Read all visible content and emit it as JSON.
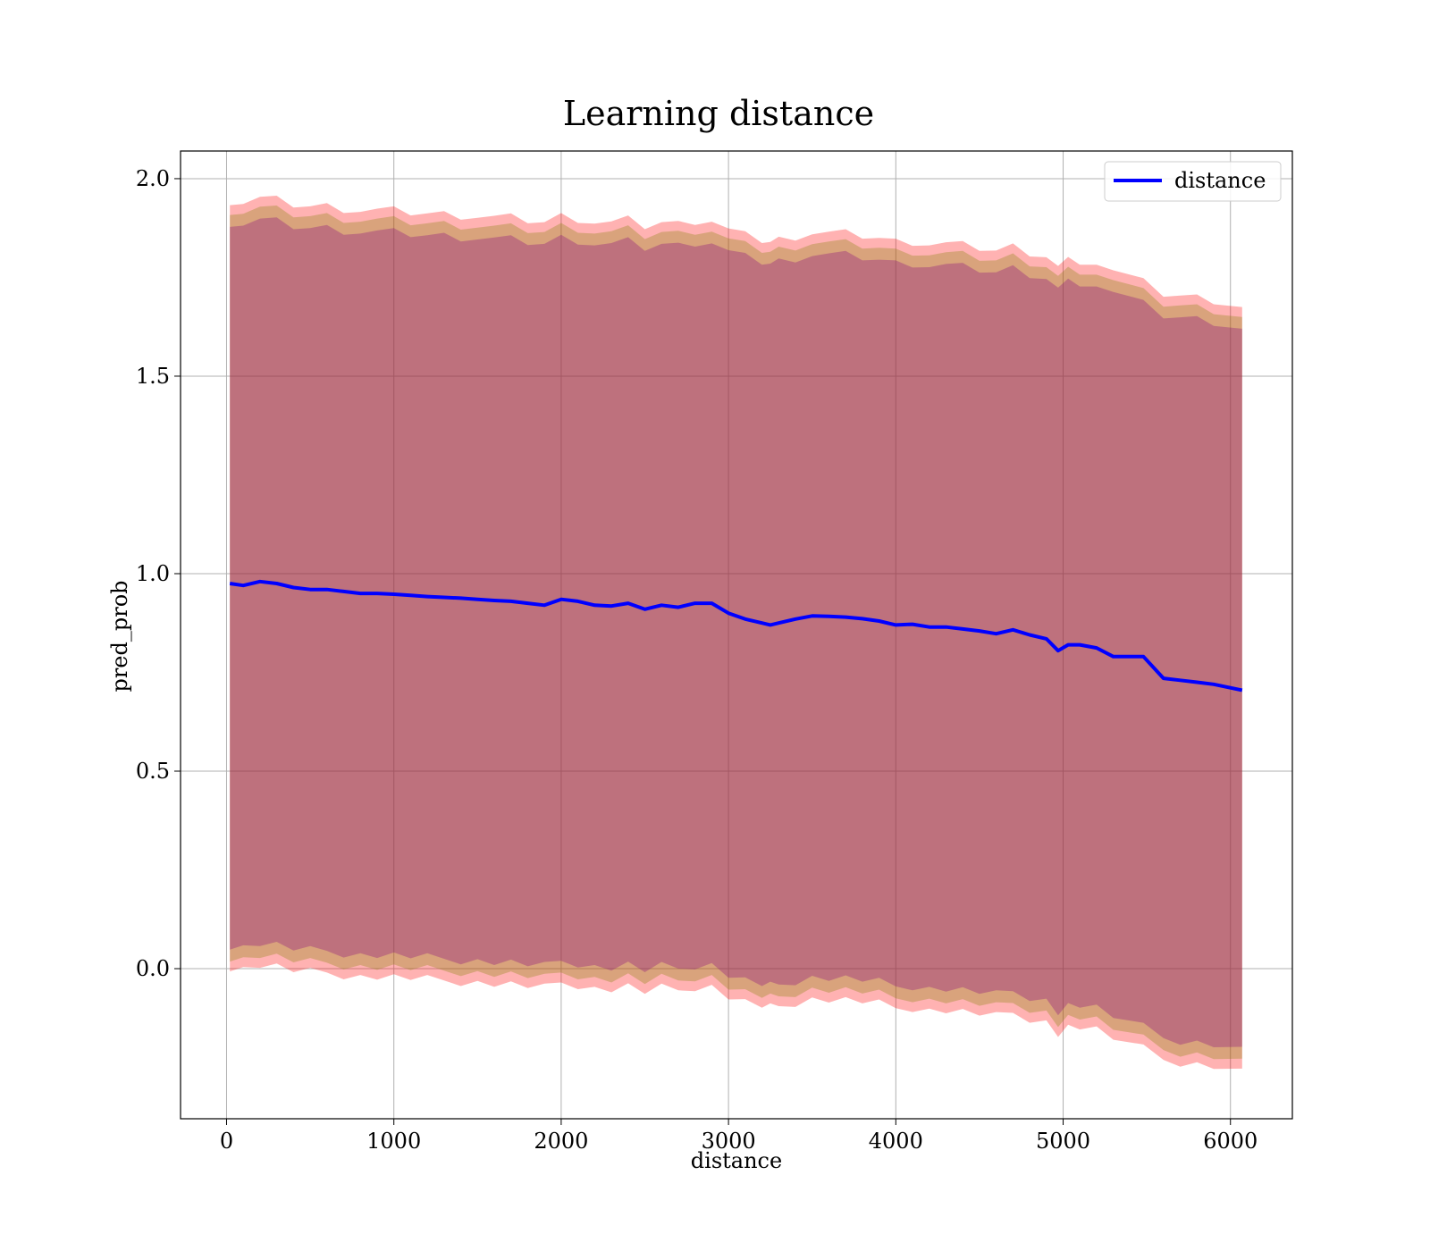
{
  "chart_data": {
    "type": "line",
    "title": "Learning distance",
    "xlabel": "distance",
    "ylabel": "pred_prob",
    "xlim": [
      -275,
      6370
    ],
    "ylim": [
      -0.38,
      2.07
    ],
    "xticks": [
      0,
      1000,
      2000,
      3000,
      4000,
      5000,
      6000
    ],
    "xtick_labels": [
      "0",
      "1000",
      "2000",
      "3000",
      "4000",
      "5000",
      "6000"
    ],
    "yticks": [
      0.0,
      0.5,
      1.0,
      1.5,
      2.0
    ],
    "ytick_labels": [
      "0.0",
      "0.5",
      "1.0",
      "1.5",
      "2.0"
    ],
    "grid": true,
    "legend": {
      "position": "top-right",
      "entries": [
        {
          "name": "distance",
          "color": "#0000ff"
        }
      ]
    },
    "series": [
      {
        "name": "distance",
        "color": "#0000ff",
        "x": [
          20,
          100,
          200,
          300,
          400,
          500,
          600,
          700,
          800,
          900,
          1000,
          1100,
          1200,
          1300,
          1400,
          1500,
          1600,
          1700,
          1800,
          1900,
          2000,
          2100,
          2200,
          2300,
          2400,
          2500,
          2600,
          2700,
          2800,
          2900,
          3000,
          3100,
          3200,
          3250,
          3300,
          3400,
          3500,
          3600,
          3700,
          3800,
          3900,
          4000,
          4100,
          4200,
          4300,
          4400,
          4500,
          4600,
          4700,
          4800,
          4900,
          4970,
          5030,
          5100,
          5200,
          5300,
          5480,
          5600,
          5700,
          5800,
          5900,
          6070
        ],
        "values": [
          0.975,
          0.97,
          0.98,
          0.975,
          0.965,
          0.96,
          0.96,
          0.955,
          0.95,
          0.95,
          0.948,
          0.945,
          0.942,
          0.94,
          0.938,
          0.935,
          0.932,
          0.93,
          0.925,
          0.92,
          0.935,
          0.93,
          0.92,
          0.918,
          0.925,
          0.91,
          0.92,
          0.915,
          0.925,
          0.925,
          0.9,
          0.885,
          0.875,
          0.87,
          0.875,
          0.885,
          0.893,
          0.892,
          0.89,
          0.886,
          0.88,
          0.87,
          0.872,
          0.865,
          0.865,
          0.86,
          0.855,
          0.848,
          0.858,
          0.845,
          0.835,
          0.805,
          0.82,
          0.82,
          0.812,
          0.79,
          0.79,
          0.735,
          0.73,
          0.725,
          0.72,
          0.705
        ]
      }
    ],
    "bands": [
      {
        "name": "band-outer",
        "color": "#ff0000",
        "opacity": 0.3,
        "offset": 0.97
      },
      {
        "name": "band-middle",
        "color": "#808000",
        "opacity": 0.3,
        "offset": 0.945
      },
      {
        "name": "band-inner",
        "color": "#800080",
        "opacity": 0.3,
        "offset": 0.915
      }
    ]
  }
}
